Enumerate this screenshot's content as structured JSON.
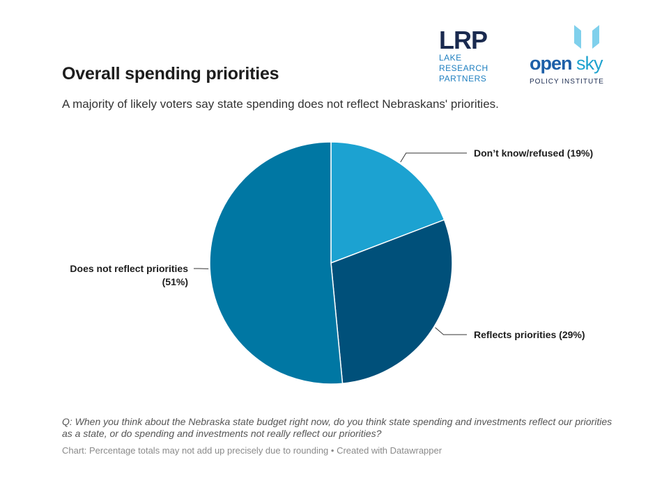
{
  "logos": {
    "lrp": {
      "mark": "LRP",
      "lines": [
        "LAKE",
        "RESEARCH",
        "PARTNERS"
      ]
    },
    "opensky": {
      "open": "open",
      "sky": "sky",
      "subtitle": "POLICY INSTITUTE"
    }
  },
  "question": "Q: When you think about the Nebraska state budget right now, do you think state spending and investments reflect our priorities as a state, or do spending and investments not really reflect our priorities?",
  "notes": "Chart: Percentage totals may not add up precisely due to rounding • Created with Datawrapper",
  "chart_data": {
    "type": "pie",
    "title": "Overall spending priorities",
    "subtitle": "A majority of likely voters say state spending does not reflect Nebraskans' priorities.",
    "start_angle_deg": 0,
    "slices": [
      {
        "label": "Don’t know/refused",
        "value": 19,
        "label_text": "Don’t know/refused (19%)",
        "color": "#1ca2d1"
      },
      {
        "label": "Reflects priorities",
        "value": 29,
        "label_text": "Reflects priorities (29%)",
        "color": "#00507a"
      },
      {
        "label": "Does not reflect priorities",
        "value": 51,
        "label_lines": [
          "Does not reflect priorities",
          "(51%)"
        ],
        "color": "#0077a3"
      }
    ]
  }
}
